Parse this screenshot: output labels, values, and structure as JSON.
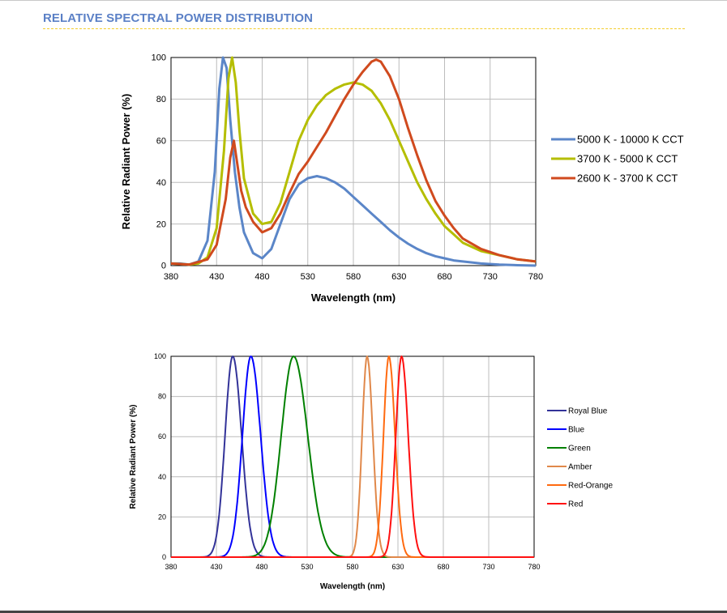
{
  "header": {
    "title": "RELATIVE SPECTRAL POWER DISTRIBUTION",
    "title_color": "#5b80c6",
    "rule_color": "#f3cd2b"
  },
  "chart_data": [
    {
      "type": "line",
      "xlabel": "Wavelength (nm)",
      "ylabel": "Relative Radiant Power (%)",
      "xlim": [
        380,
        780
      ],
      "ylim": [
        0,
        100
      ],
      "xticks": [
        "380",
        "430",
        "480",
        "530",
        "580",
        "630",
        "680",
        "730",
        "780"
      ],
      "yticks": [
        "0",
        "20",
        "40",
        "60",
        "80",
        "100"
      ],
      "grid": true,
      "legend_position": "right",
      "series": [
        {
          "name": "5000 K - 10000 K CCT",
          "color": "#5b86c8",
          "points": [
            [
              380,
              1
            ],
            [
              390,
              1
            ],
            [
              400,
              0.5
            ],
            [
              410,
              2
            ],
            [
              420,
              12
            ],
            [
              428,
              45
            ],
            [
              433,
              85
            ],
            [
              437,
              100
            ],
            [
              441,
              95
            ],
            [
              445,
              70
            ],
            [
              450,
              45
            ],
            [
              455,
              28
            ],
            [
              460,
              16
            ],
            [
              470,
              6
            ],
            [
              480,
              3.5
            ],
            [
              490,
              8
            ],
            [
              500,
              20
            ],
            [
              510,
              32
            ],
            [
              520,
              39
            ],
            [
              530,
              42
            ],
            [
              540,
              43
            ],
            [
              550,
              42
            ],
            [
              560,
              40
            ],
            [
              570,
              37
            ],
            [
              580,
              33
            ],
            [
              590,
              29
            ],
            [
              600,
              25
            ],
            [
              610,
              21
            ],
            [
              620,
              17
            ],
            [
              630,
              13.5
            ],
            [
              640,
              10.5
            ],
            [
              650,
              8
            ],
            [
              660,
              6
            ],
            [
              670,
              4.5
            ],
            [
              680,
              3.5
            ],
            [
              690,
              2.5
            ],
            [
              700,
              2
            ],
            [
              710,
              1.5
            ],
            [
              720,
              1
            ],
            [
              740,
              0.5
            ],
            [
              760,
              0.2
            ],
            [
              780,
              0
            ]
          ]
        },
        {
          "name": "3700 K - 5000 K CCT",
          "color": "#b5be00",
          "points": [
            [
              380,
              1
            ],
            [
              400,
              0.5
            ],
            [
              410,
              1
            ],
            [
              420,
              4
            ],
            [
              430,
              18
            ],
            [
              438,
              55
            ],
            [
              443,
              90
            ],
            [
              447,
              100
            ],
            [
              451,
              88
            ],
            [
              455,
              65
            ],
            [
              460,
              42
            ],
            [
              470,
              25
            ],
            [
              480,
              20
            ],
            [
              490,
              21
            ],
            [
              500,
              30
            ],
            [
              510,
              45
            ],
            [
              520,
              60
            ],
            [
              530,
              70
            ],
            [
              540,
              77
            ],
            [
              550,
              82
            ],
            [
              560,
              85
            ],
            [
              570,
              87
            ],
            [
              580,
              88
            ],
            [
              590,
              87
            ],
            [
              600,
              84
            ],
            [
              610,
              78
            ],
            [
              620,
              70
            ],
            [
              630,
              60
            ],
            [
              640,
              50
            ],
            [
              650,
              40
            ],
            [
              660,
              32
            ],
            [
              670,
              25
            ],
            [
              680,
              19
            ],
            [
              690,
              15
            ],
            [
              700,
              11
            ],
            [
              720,
              7
            ],
            [
              740,
              5
            ],
            [
              760,
              3
            ],
            [
              780,
              2
            ]
          ]
        },
        {
          "name": "2600 K - 3700 K CCT",
          "color": "#d04a1e",
          "points": [
            [
              380,
              1
            ],
            [
              400,
              0.5
            ],
            [
              420,
              3
            ],
            [
              430,
              10
            ],
            [
              440,
              32
            ],
            [
              445,
              52
            ],
            [
              449,
              60
            ],
            [
              453,
              48
            ],
            [
              457,
              36
            ],
            [
              462,
              28
            ],
            [
              470,
              21
            ],
            [
              480,
              16
            ],
            [
              490,
              18
            ],
            [
              500,
              25
            ],
            [
              510,
              35
            ],
            [
              520,
              44
            ],
            [
              530,
              50
            ],
            [
              540,
              57
            ],
            [
              550,
              64
            ],
            [
              560,
              72
            ],
            [
              570,
              80
            ],
            [
              580,
              87
            ],
            [
              590,
              93
            ],
            [
              600,
              98
            ],
            [
              605,
              99
            ],
            [
              610,
              98
            ],
            [
              620,
              91
            ],
            [
              630,
              80
            ],
            [
              640,
              66
            ],
            [
              650,
              53
            ],
            [
              660,
              41
            ],
            [
              670,
              31
            ],
            [
              680,
              24
            ],
            [
              690,
              18
            ],
            [
              700,
              13
            ],
            [
              720,
              8
            ],
            [
              740,
              5
            ],
            [
              760,
              3
            ],
            [
              780,
              2
            ]
          ]
        }
      ]
    },
    {
      "type": "line",
      "xlabel": "Wavelength (nm)",
      "ylabel": "Relative Radiant Power (%)",
      "xlim": [
        380,
        780
      ],
      "ylim": [
        0,
        100
      ],
      "xticks": [
        "380",
        "430",
        "480",
        "530",
        "580",
        "630",
        "680",
        "730",
        "780"
      ],
      "yticks": [
        "0",
        "20",
        "40",
        "60",
        "80",
        "100"
      ],
      "grid": true,
      "legend_position": "right",
      "series": [
        {
          "name": "Royal Blue",
          "color": "#333399",
          "peak": 448,
          "fwhm": 20
        },
        {
          "name": "Blue",
          "color": "#0000ff",
          "peak": 468,
          "fwhm": 22
        },
        {
          "name": "Green",
          "color": "#008000",
          "peak": 515,
          "fwhm": 32
        },
        {
          "name": "Amber",
          "color": "#e0884a",
          "peak": 596,
          "fwhm": 13
        },
        {
          "name": "Red-Orange",
          "color": "#ff6a10",
          "peak": 620,
          "fwhm": 14
        },
        {
          "name": "Red",
          "color": "#ff1010",
          "peak": 634,
          "fwhm": 15
        }
      ]
    }
  ]
}
